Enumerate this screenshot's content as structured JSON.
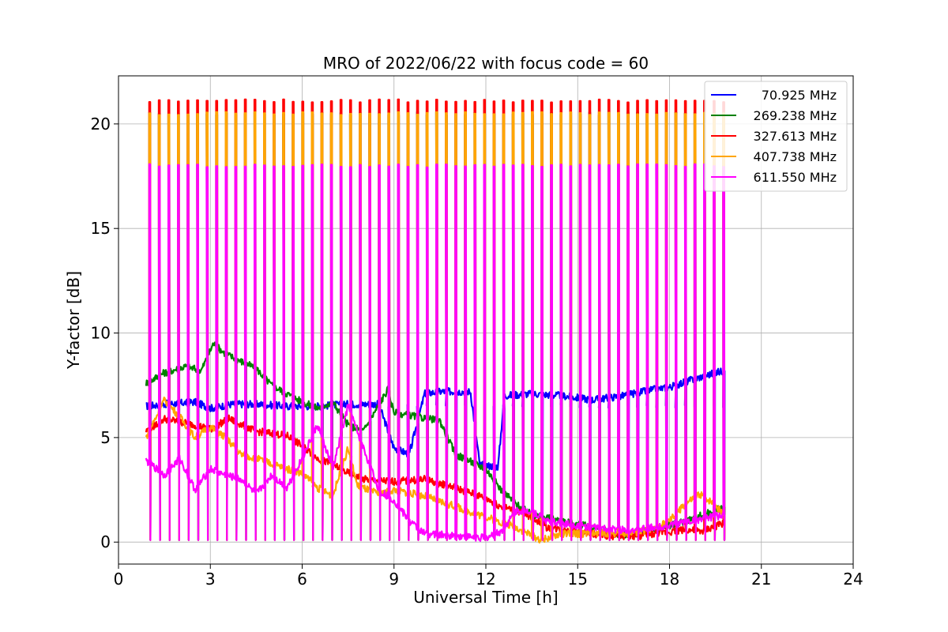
{
  "chart_data": {
    "type": "line",
    "title": "MRO of 2022/06/22 with focus code = 60",
    "xlabel": "Universal Time [h]",
    "ylabel": "Y-factor [dB]",
    "xlim": [
      0,
      24
    ],
    "ylim": [
      -1.05,
      22.3
    ],
    "xticks": [
      0,
      3,
      6,
      9,
      12,
      15,
      18,
      21,
      24
    ],
    "yticks": [
      0,
      5,
      10,
      15,
      20
    ],
    "grid": true,
    "legend_position": "top-right",
    "pulses": {
      "start": 1.0,
      "end": 19.75,
      "count": 61
    },
    "series": [
      {
        "name": "70.925 MHz",
        "color": "#0000ff",
        "baseline": [
          [
            0.9,
            6.5
          ],
          [
            1.5,
            6.6
          ],
          [
            2.5,
            6.7
          ],
          [
            3.0,
            6.4
          ],
          [
            3.7,
            6.6
          ],
          [
            4.5,
            6.6
          ],
          [
            5.5,
            6.5
          ],
          [
            6.5,
            6.5
          ],
          [
            7.5,
            6.6
          ],
          [
            8.5,
            6.6
          ],
          [
            9.0,
            4.5
          ],
          [
            9.5,
            4.2
          ],
          [
            10.0,
            7.1
          ],
          [
            10.5,
            7.2
          ],
          [
            11.5,
            7.2
          ],
          [
            11.8,
            3.7
          ],
          [
            12.4,
            3.6
          ],
          [
            12.6,
            7.0
          ],
          [
            13.5,
            7.1
          ],
          [
            14.5,
            7.0
          ],
          [
            15.5,
            6.8
          ],
          [
            16.5,
            7.0
          ],
          [
            17.5,
            7.3
          ],
          [
            18.0,
            7.4
          ],
          [
            18.8,
            7.8
          ],
          [
            19.5,
            8.1
          ],
          [
            19.8,
            8.2
          ]
        ],
        "peak": 6.5,
        "trough": 0.1
      },
      {
        "name": "269.238 MHz",
        "color": "#008000",
        "baseline": [
          [
            0.9,
            7.6
          ],
          [
            1.5,
            8.1
          ],
          [
            2.2,
            8.4
          ],
          [
            2.7,
            8.2
          ],
          [
            3.1,
            9.5
          ],
          [
            3.5,
            9.0
          ],
          [
            4.5,
            8.3
          ],
          [
            5.0,
            7.5
          ],
          [
            5.5,
            7.1
          ],
          [
            6.0,
            6.7
          ],
          [
            6.5,
            6.4
          ],
          [
            7.0,
            6.7
          ],
          [
            7.5,
            5.6
          ],
          [
            8.0,
            5.3
          ],
          [
            8.8,
            7.3
          ],
          [
            9.0,
            6.2
          ],
          [
            10.5,
            5.8
          ],
          [
            11.0,
            4.2
          ],
          [
            12.0,
            3.5
          ],
          [
            12.5,
            2.5
          ],
          [
            13.0,
            1.8
          ],
          [
            13.5,
            1.3
          ],
          [
            14.5,
            1.0
          ],
          [
            15.5,
            0.7
          ],
          [
            16.5,
            0.3
          ],
          [
            17.5,
            0.6
          ],
          [
            18.5,
            1.0
          ],
          [
            19.5,
            1.5
          ],
          [
            19.8,
            1.7
          ]
        ],
        "peak": 20.5,
        "trough": 0.1
      },
      {
        "name": "327.613 MHz",
        "color": "#ff0000",
        "baseline": [
          [
            0.9,
            5.3
          ],
          [
            1.5,
            5.9
          ],
          [
            2.5,
            5.6
          ],
          [
            3.0,
            5.4
          ],
          [
            3.6,
            5.9
          ],
          [
            4.5,
            5.3
          ],
          [
            5.5,
            5.1
          ],
          [
            6.0,
            4.6
          ],
          [
            6.5,
            4.0
          ],
          [
            7.0,
            3.7
          ],
          [
            7.5,
            3.3
          ],
          [
            8.0,
            3.0
          ],
          [
            9.0,
            2.9
          ],
          [
            10.0,
            3.0
          ],
          [
            11.0,
            2.6
          ],
          [
            12.0,
            2.1
          ],
          [
            12.5,
            1.7
          ],
          [
            13.0,
            1.5
          ],
          [
            13.5,
            1.2
          ],
          [
            14.0,
            0.7
          ],
          [
            15.0,
            0.5
          ],
          [
            16.0,
            0.3
          ],
          [
            17.0,
            0.3
          ],
          [
            18.0,
            0.5
          ],
          [
            18.5,
            0.6
          ],
          [
            19.0,
            0.5
          ],
          [
            19.8,
            0.9
          ]
        ],
        "peak": 21.1,
        "trough": 0.1
      },
      {
        "name": "407.738 MHz",
        "color": "#ffa500",
        "baseline": [
          [
            0.9,
            5.0
          ],
          [
            1.5,
            6.8
          ],
          [
            2.0,
            6.0
          ],
          [
            2.5,
            5.0
          ],
          [
            3.0,
            5.5
          ],
          [
            3.5,
            5.0
          ],
          [
            4.0,
            4.2
          ],
          [
            4.5,
            4.0
          ],
          [
            5.5,
            3.5
          ],
          [
            6.0,
            3.3
          ],
          [
            6.5,
            2.6
          ],
          [
            7.0,
            2.2
          ],
          [
            7.5,
            4.5
          ],
          [
            7.8,
            2.7
          ],
          [
            8.5,
            2.3
          ],
          [
            9.0,
            2.5
          ],
          [
            10.0,
            2.2
          ],
          [
            11.0,
            1.7
          ],
          [
            12.0,
            1.2
          ],
          [
            13.0,
            0.7
          ],
          [
            13.8,
            0.1
          ],
          [
            14.5,
            0.4
          ],
          [
            15.5,
            0.4
          ],
          [
            16.5,
            0.4
          ],
          [
            17.5,
            0.6
          ],
          [
            18.0,
            1.0
          ],
          [
            18.5,
            1.8
          ],
          [
            19.0,
            2.3
          ],
          [
            19.5,
            1.8
          ],
          [
            19.8,
            1.2
          ]
        ],
        "peak": 20.5,
        "trough": 0.1
      },
      {
        "name": "611.550 MHz",
        "color": "#ff00ff",
        "baseline": [
          [
            0.9,
            3.9
          ],
          [
            1.5,
            3.2
          ],
          [
            2.0,
            4.0
          ],
          [
            2.5,
            2.5
          ],
          [
            3.0,
            3.5
          ],
          [
            3.5,
            3.2
          ],
          [
            4.0,
            3.0
          ],
          [
            4.5,
            2.3
          ],
          [
            5.0,
            3.2
          ],
          [
            5.5,
            2.6
          ],
          [
            6.0,
            4.0
          ],
          [
            6.5,
            5.6
          ],
          [
            7.0,
            3.5
          ],
          [
            7.5,
            6.5
          ],
          [
            8.0,
            4.5
          ],
          [
            8.5,
            2.5
          ],
          [
            9.0,
            2.0
          ],
          [
            9.5,
            1.0
          ],
          [
            10.0,
            0.4
          ],
          [
            11.0,
            0.3
          ],
          [
            12.0,
            0.2
          ],
          [
            12.5,
            0.5
          ],
          [
            13.0,
            1.5
          ],
          [
            13.5,
            1.5
          ],
          [
            14.0,
            1.0
          ],
          [
            15.0,
            0.8
          ],
          [
            16.0,
            0.6
          ],
          [
            17.0,
            0.6
          ],
          [
            18.0,
            0.8
          ],
          [
            19.0,
            1.1
          ],
          [
            19.8,
            1.3
          ]
        ],
        "peak": 18.0,
        "trough": 0.1
      }
    ]
  }
}
